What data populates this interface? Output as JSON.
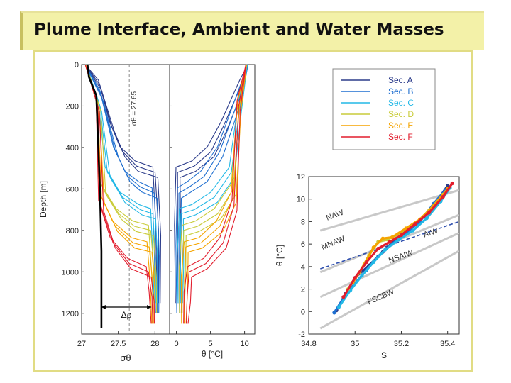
{
  "slide": {
    "title": "Plume Interface, Ambient and Water Masses"
  },
  "colors": {
    "sec_A": "#2b3b8a",
    "sec_B": "#1f6fd0",
    "sec_C": "#22b8e6",
    "sec_D": "#c9cc3a",
    "sec_E": "#f5a400",
    "sec_F": "#e21d2d",
    "panel_border": "#e1dc84",
    "title_bg": "#f3f1a8"
  },
  "chart_data": [
    {
      "type": "line",
      "title": "",
      "xlabel": "σθ",
      "ylabel": "Depth [m]",
      "xlim": [
        27,
        28.2
      ],
      "ylim": [
        1300,
        0
      ],
      "xticks": [
        "27",
        "27.5",
        "28"
      ],
      "yticks": [
        "0",
        "200",
        "400",
        "600",
        "800",
        "1000",
        "1200"
      ],
      "reference_line_label": "σθ = 27.65",
      "reference_line_x": 27.65,
      "annotation": "Δρ",
      "thick_profile": {
        "x": [
          27.08,
          27.1,
          27.2,
          27.25,
          27.27,
          27.27
        ],
        "depth": [
          0,
          60,
          150,
          600,
          900,
          1270
        ]
      },
      "series": [
        {
          "name": "Sec. A",
          "x": [
            27.05,
            27.25,
            27.42,
            27.55,
            27.75,
            28.01,
            28.04,
            28.05
          ],
          "depth": [
            0,
            100,
            300,
            420,
            490,
            520,
            800,
            1150
          ]
        },
        {
          "name": "Sec. B",
          "x": [
            27.05,
            27.27,
            27.47,
            27.62,
            27.8,
            28.0,
            28.02,
            28.03
          ],
          "depth": [
            0,
            150,
            420,
            540,
            590,
            620,
            900,
            1200
          ]
        },
        {
          "name": "Sec. C",
          "x": [
            27.06,
            27.25,
            27.36,
            27.55,
            27.8,
            27.98,
            28.0,
            28.01
          ],
          "depth": [
            0,
            200,
            520,
            640,
            700,
            720,
            950,
            1150
          ]
        },
        {
          "name": "Sec. D",
          "x": [
            27.06,
            27.24,
            27.3,
            27.5,
            27.72,
            27.95,
            27.98,
            28.0
          ],
          "depth": [
            0,
            200,
            600,
            720,
            780,
            800,
            1000,
            1200
          ]
        },
        {
          "name": "Sec. E",
          "x": [
            27.05,
            27.22,
            27.28,
            27.45,
            27.7,
            27.93,
            27.96,
            27.98
          ],
          "depth": [
            0,
            200,
            640,
            780,
            860,
            880,
            1050,
            1250
          ]
        },
        {
          "name": "Sec. F",
          "x": [
            27.05,
            27.22,
            27.27,
            27.42,
            27.65,
            27.92,
            27.95,
            27.97
          ],
          "depth": [
            0,
            200,
            680,
            860,
            960,
            1000,
            1120,
            1250
          ]
        }
      ]
    },
    {
      "type": "line",
      "title": "",
      "xlabel": "θ [°C]",
      "ylabel": "",
      "xlim": [
        -1,
        11.5
      ],
      "ylim": [
        1300,
        0
      ],
      "xticks": [
        "0",
        "5",
        "10"
      ],
      "series": [
        {
          "name": "Sec. A",
          "x": [
            10.5,
            9.5,
            7,
            5,
            2.5,
            0.3,
            0.2,
            0.1
          ],
          "depth": [
            0,
            100,
            300,
            420,
            490,
            520,
            800,
            1150
          ]
        },
        {
          "name": "Sec. B",
          "x": [
            10.5,
            9.3,
            6.5,
            4,
            1.8,
            0.5,
            0.4,
            0.3
          ],
          "depth": [
            0,
            150,
            420,
            540,
            590,
            620,
            900,
            1200
          ]
        },
        {
          "name": "Sec. C",
          "x": [
            10.4,
            9.3,
            8.2,
            5.5,
            2.5,
            0.8,
            0.6,
            0.5
          ],
          "depth": [
            0,
            200,
            520,
            640,
            700,
            720,
            950,
            1150
          ]
        },
        {
          "name": "Sec. D",
          "x": [
            10.3,
            9.2,
            8.5,
            6,
            3,
            1.2,
            0.9,
            0.7
          ],
          "depth": [
            0,
            200,
            600,
            720,
            780,
            800,
            1000,
            1200
          ]
        },
        {
          "name": "Sec. E",
          "x": [
            10.3,
            9.2,
            8.5,
            6.3,
            3.5,
            1.5,
            1.2,
            1.0
          ],
          "depth": [
            0,
            200,
            640,
            780,
            860,
            880,
            1050,
            1250
          ]
        },
        {
          "name": "Sec. F",
          "x": [
            10.2,
            9.1,
            8.6,
            6.8,
            4.2,
            2,
            1.6,
            1.3
          ],
          "depth": [
            0,
            200,
            680,
            860,
            960,
            1000,
            1120,
            1250
          ]
        }
      ]
    },
    {
      "type": "scatter",
      "title": "",
      "xlabel": "S",
      "ylabel": "θ [°C]",
      "xlim": [
        34.8,
        35.45
      ],
      "ylim": [
        -2,
        12
      ],
      "xticks": [
        "34.8",
        "35",
        "35.2",
        "35.4"
      ],
      "yticks": [
        "-2",
        "0",
        "2",
        "4",
        "6",
        "8",
        "10",
        "12"
      ],
      "legend": {
        "placement": "top-right",
        "entries": [
          "Sec. A",
          "Sec. B",
          "Sec. C",
          "Sec. D",
          "Sec. E",
          "Sec. F"
        ]
      },
      "water_mass_labels": [
        "NAW",
        "AIW",
        "MNAW",
        "NSAIW",
        "FSCBW"
      ],
      "isopycnals": [
        {
          "S": [
            34.85,
            35.05,
            35.25,
            35.45
          ],
          "theta": [
            7.2,
            8.4,
            9.6,
            10.8
          ]
        },
        {
          "S": [
            34.85,
            35.05,
            35.25,
            35.45
          ],
          "theta": [
            3.5,
            5.2,
            6.9,
            8.6
          ]
        },
        {
          "S": [
            34.85,
            35.05,
            35.25,
            35.45
          ],
          "theta": [
            1.3,
            3.2,
            5.1,
            7.0
          ]
        },
        {
          "S": [
            34.85,
            35.05,
            35.25,
            35.45
          ],
          "theta": [
            -1.5,
            0.8,
            3.1,
            5.4
          ]
        }
      ],
      "dashed_line": {
        "S": [
          34.85,
          35.45
        ],
        "theta": [
          3.8,
          8.0
        ]
      },
      "series": [
        {
          "name": "Sec. A",
          "S": [
            34.92,
            34.96,
            35.0,
            35.06,
            35.12,
            35.18,
            35.24,
            35.3,
            35.36,
            35.4
          ],
          "theta": [
            0.1,
            1.6,
            3.0,
            4.1,
            5.3,
            6.5,
            7.4,
            8.5,
            10.0,
            11.2
          ]
        },
        {
          "name": "Sec. B",
          "S": [
            34.91,
            34.95,
            35.0,
            35.05,
            35.1,
            35.16,
            35.22,
            35.28,
            35.34,
            35.39
          ],
          "theta": [
            -0.1,
            1.2,
            2.5,
            3.7,
            4.9,
            6.0,
            7.0,
            8.0,
            9.6,
            10.8
          ]
        },
        {
          "name": "Sec. C",
          "S": [
            34.93,
            34.98,
            35.03,
            35.08,
            35.13,
            35.19,
            35.25,
            35.31,
            35.37,
            35.41
          ],
          "theta": [
            0.4,
            1.9,
            3.2,
            4.4,
            5.5,
            6.4,
            7.2,
            8.3,
            9.8,
            11.0
          ]
        },
        {
          "name": "Sec. D",
          "S": [
            34.97,
            35.02,
            35.06,
            35.1,
            35.14,
            35.2,
            35.26,
            35.32,
            35.38
          ],
          "theta": [
            2.0,
            3.5,
            5.0,
            6.2,
            6.4,
            7.0,
            7.8,
            9.0,
            10.4
          ]
        },
        {
          "name": "Sec. E",
          "S": [
            34.99,
            35.04,
            35.08,
            35.12,
            35.16,
            35.22,
            35.28,
            35.34,
            35.4
          ],
          "theta": [
            2.6,
            4.2,
            5.7,
            6.5,
            6.6,
            7.4,
            8.2,
            9.4,
            10.9
          ]
        },
        {
          "name": "Sec. F",
          "S": [
            34.95,
            35.0,
            35.05,
            35.1,
            35.15,
            35.2,
            35.26,
            35.32,
            35.38,
            35.42
          ],
          "theta": [
            1.3,
            3.0,
            4.4,
            5.6,
            6.2,
            6.8,
            7.8,
            8.8,
            10.2,
            11.4
          ]
        }
      ]
    }
  ]
}
